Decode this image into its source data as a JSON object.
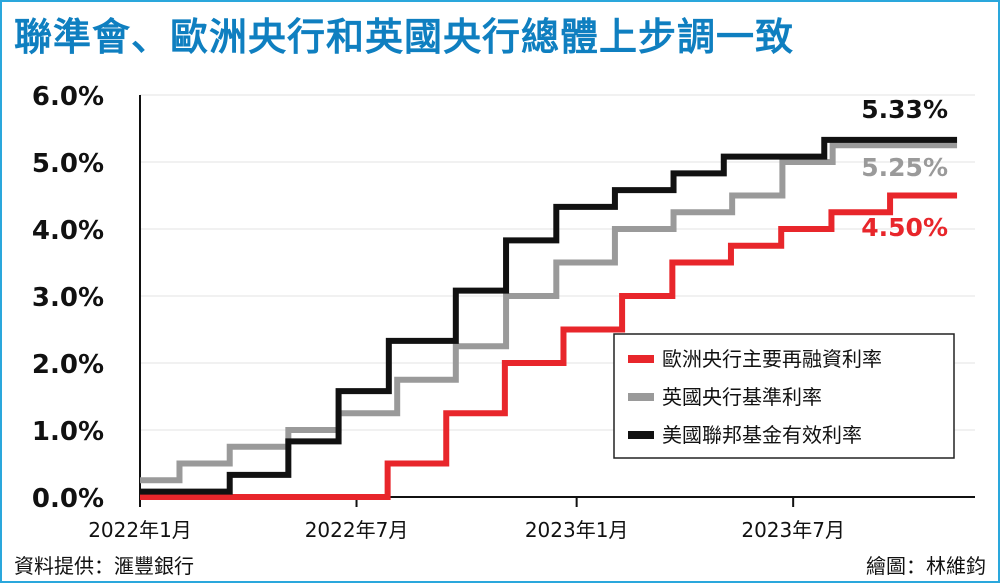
{
  "title": "聯準會、歐洲央行和英國央行總體上步調一致",
  "source": "資料提供：滙豐銀行",
  "credit": "繪圖：林維鈞",
  "chart_data": {
    "type": "line",
    "step": true,
    "xlim": [
      "2022-01-01",
      "2023-11-30"
    ],
    "ylim": [
      0,
      6
    ],
    "y_ticks": [
      "0.0%",
      "1.0%",
      "2.0%",
      "3.0%",
      "4.0%",
      "5.0%",
      "6.0%"
    ],
    "y_tick_values": [
      0,
      1,
      2,
      3,
      4,
      5,
      6
    ],
    "x_ticks": [
      {
        "date": "2022-01-01",
        "label": "2022年1月"
      },
      {
        "date": "2022-07-01",
        "label": "2022年7月"
      },
      {
        "date": "2023-01-01",
        "label": "2023年1月"
      },
      {
        "date": "2023-07-01",
        "label": "2023年7月"
      }
    ],
    "legend_position": "bottom-right",
    "series": [
      {
        "name": "歐洲央行主要再融資利率",
        "color": "#e8262b",
        "end_label": "4.50%",
        "points": [
          {
            "x": "2022-01-01",
            "y": 0
          },
          {
            "x": "2022-07-27",
            "y": 0.5
          },
          {
            "x": "2022-09-14",
            "y": 1.25
          },
          {
            "x": "2022-11-02",
            "y": 2.0
          },
          {
            "x": "2022-12-21",
            "y": 2.5
          },
          {
            "x": "2023-02-08",
            "y": 3.0
          },
          {
            "x": "2023-03-22",
            "y": 3.5
          },
          {
            "x": "2023-05-10",
            "y": 3.75
          },
          {
            "x": "2023-06-21",
            "y": 4.0
          },
          {
            "x": "2023-08-02",
            "y": 4.25
          },
          {
            "x": "2023-09-20",
            "y": 4.5
          },
          {
            "x": "2023-11-15",
            "y": 4.5
          }
        ]
      },
      {
        "name": "英國央行基準利率",
        "color": "#9a9a9a",
        "end_label": "5.25%",
        "points": [
          {
            "x": "2022-01-01",
            "y": 0.25
          },
          {
            "x": "2022-02-03",
            "y": 0.5
          },
          {
            "x": "2022-03-17",
            "y": 0.75
          },
          {
            "x": "2022-05-05",
            "y": 1.0
          },
          {
            "x": "2022-06-16",
            "y": 1.25
          },
          {
            "x": "2022-08-04",
            "y": 1.75
          },
          {
            "x": "2022-09-22",
            "y": 2.25
          },
          {
            "x": "2022-11-03",
            "y": 3.0
          },
          {
            "x": "2022-12-15",
            "y": 3.5
          },
          {
            "x": "2023-02-02",
            "y": 4.0
          },
          {
            "x": "2023-03-23",
            "y": 4.25
          },
          {
            "x": "2023-05-11",
            "y": 4.5
          },
          {
            "x": "2023-06-22",
            "y": 5.0
          },
          {
            "x": "2023-08-03",
            "y": 5.25
          },
          {
            "x": "2023-11-15",
            "y": 5.25
          }
        ]
      },
      {
        "name": "美國聯邦基金有效利率",
        "color": "#111111",
        "end_label": "5.33%",
        "points": [
          {
            "x": "2022-01-01",
            "y": 0.08
          },
          {
            "x": "2022-03-17",
            "y": 0.33
          },
          {
            "x": "2022-05-05",
            "y": 0.83
          },
          {
            "x": "2022-06-16",
            "y": 1.58
          },
          {
            "x": "2022-07-28",
            "y": 2.33
          },
          {
            "x": "2022-09-22",
            "y": 3.08
          },
          {
            "x": "2022-11-03",
            "y": 3.83
          },
          {
            "x": "2022-12-15",
            "y": 4.33
          },
          {
            "x": "2023-02-02",
            "y": 4.58
          },
          {
            "x": "2023-03-23",
            "y": 4.83
          },
          {
            "x": "2023-05-04",
            "y": 5.08
          },
          {
            "x": "2023-07-27",
            "y": 5.33
          },
          {
            "x": "2023-11-15",
            "y": 5.33
          }
        ]
      }
    ]
  }
}
